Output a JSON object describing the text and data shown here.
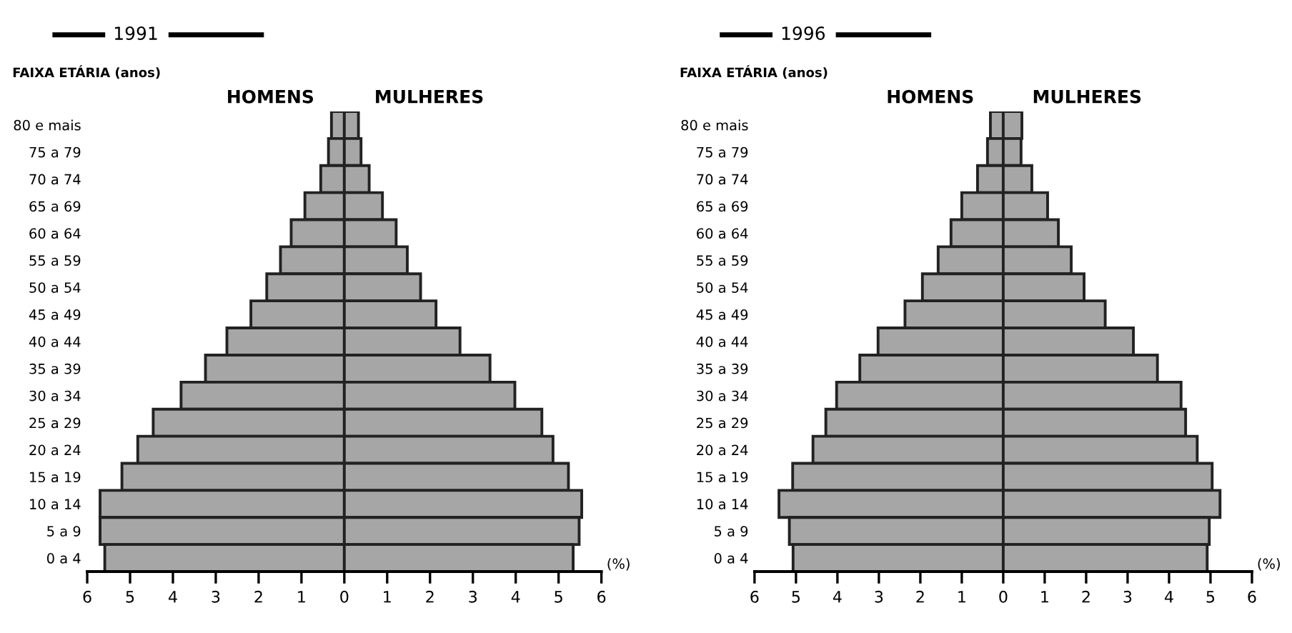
{
  "chart_data": [
    {
      "type": "bar",
      "orientation": "horizontal",
      "stacked": true,
      "title": "1991",
      "ylabel": "FAIXA ETÁRIA (anos)",
      "xlabel": "(%)",
      "categories": [
        "80 e mais",
        "75 a 79",
        "70 a 74",
        "65 a 69",
        "60 a 64",
        "55 a 59",
        "50 a 54",
        "45 a 49",
        "40 a 44",
        "35 a 39",
        "30 a 34",
        "25 a 29",
        "20 a 24",
        "15 a 19",
        "10 a 14",
        "5 a 9",
        "0 a 4"
      ],
      "series": [
        {
          "name": "HOMENS",
          "color": "#a6a6a6",
          "values": [
            -0.3,
            -0.37,
            -0.55,
            -0.92,
            -1.24,
            -1.49,
            -1.81,
            -2.18,
            -2.74,
            -3.24,
            -3.81,
            -4.46,
            -4.82,
            -5.19,
            -5.7,
            -5.7,
            -5.59
          ]
        },
        {
          "name": "MULHERES",
          "color": "#a6a6a6",
          "values": [
            0.33,
            0.39,
            0.58,
            0.89,
            1.21,
            1.47,
            1.78,
            2.14,
            2.7,
            3.4,
            3.98,
            4.61,
            4.87,
            5.23,
            5.54,
            5.48,
            5.34
          ]
        }
      ],
      "xlim": [
        -6,
        6
      ],
      "xticks": [
        {
          "value": -6,
          "label": "6"
        },
        {
          "value": -5,
          "label": "5"
        },
        {
          "value": -4,
          "label": "4"
        },
        {
          "value": -3,
          "label": "3"
        },
        {
          "value": -2,
          "label": "2"
        },
        {
          "value": -1,
          "label": "1"
        },
        0,
        1,
        2,
        3,
        4,
        5,
        6
      ],
      "grid": false,
      "legend": false
    },
    {
      "type": "bar",
      "orientation": "horizontal",
      "stacked": true,
      "title": "1996",
      "ylabel": "FAIXA ETÁRIA (anos)",
      "xlabel": "(%)",
      "categories": [
        "80 e mais",
        "75 a 79",
        "70 a 74",
        "65 a 69",
        "60 a 64",
        "55 a 59",
        "50 a 54",
        "45 a 49",
        "40 a 44",
        "35 a 39",
        "30 a 34",
        "25 a 29",
        "20 a 24",
        "15 a 19",
        "10 a 14",
        "5 a 9",
        "0 a 4"
      ],
      "series": [
        {
          "name": "HOMENS",
          "color": "#a6a6a6",
          "values": [
            -0.31,
            -0.38,
            -0.62,
            -1.0,
            -1.26,
            -1.57,
            -1.95,
            -2.37,
            -3.02,
            -3.46,
            -4.02,
            -4.28,
            -4.59,
            -5.08,
            -5.41,
            -5.16,
            -5.07
          ]
        },
        {
          "name": "MULHERES",
          "color": "#a6a6a6",
          "values": [
            0.45,
            0.43,
            0.69,
            1.07,
            1.33,
            1.64,
            1.95,
            2.46,
            3.14,
            3.72,
            4.29,
            4.4,
            4.68,
            5.04,
            5.23,
            4.97,
            4.92
          ]
        }
      ],
      "xlim": [
        -6,
        6
      ],
      "xticks": [
        {
          "value": -6,
          "label": "6"
        },
        {
          "value": -5,
          "label": "5"
        },
        {
          "value": -4,
          "label": "4"
        },
        {
          "value": -3,
          "label": "3"
        },
        {
          "value": -2,
          "label": "2"
        },
        {
          "value": -1,
          "label": "1"
        },
        0,
        1,
        2,
        3,
        4,
        5,
        6
      ],
      "grid": false,
      "legend": false
    }
  ]
}
